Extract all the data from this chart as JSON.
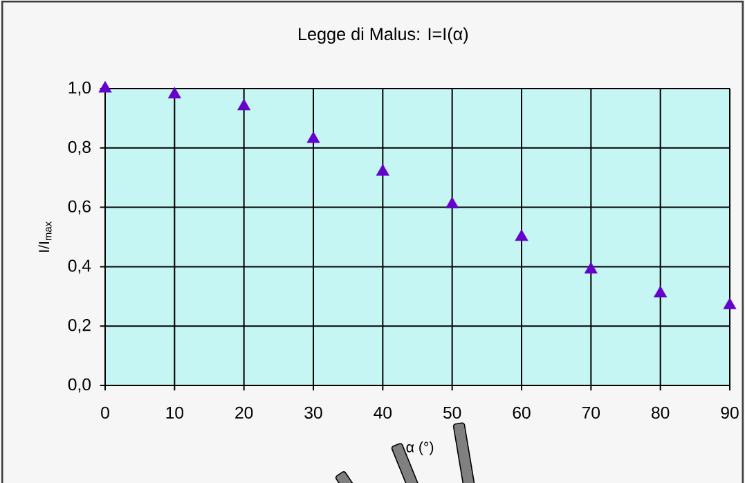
{
  "chart_data": {
    "type": "scatter",
    "title": "Legge di Malus: I=I(α)",
    "xlabel": "α (°)",
    "ylabel": "I/I$_{max}$",
    "x": [
      0,
      10,
      20,
      30,
      40,
      50,
      60,
      70,
      80,
      90
    ],
    "values": [
      1.0,
      0.98,
      0.94,
      0.83,
      0.72,
      0.61,
      0.5,
      0.39,
      0.31,
      0.27
    ],
    "color": "#6600cc",
    "marker": "triangle",
    "grid": true,
    "xlim": [
      0,
      90
    ],
    "ylim": [
      0,
      1
    ],
    "xticks": [
      0,
      10,
      20,
      30,
      40,
      50,
      60,
      70,
      80,
      90
    ],
    "yticks": [
      {
        "value": 0,
        "label": "0,0"
      },
      {
        "value": 0.2,
        "label": "0,2"
      },
      {
        "value": 0.4,
        "label": "0,4"
      },
      {
        "value": 0.6,
        "label": "0,6"
      },
      {
        "value": 0.8,
        "label": "0,8"
      },
      {
        "value": 1,
        "label": "1,0"
      }
    ]
  }
}
